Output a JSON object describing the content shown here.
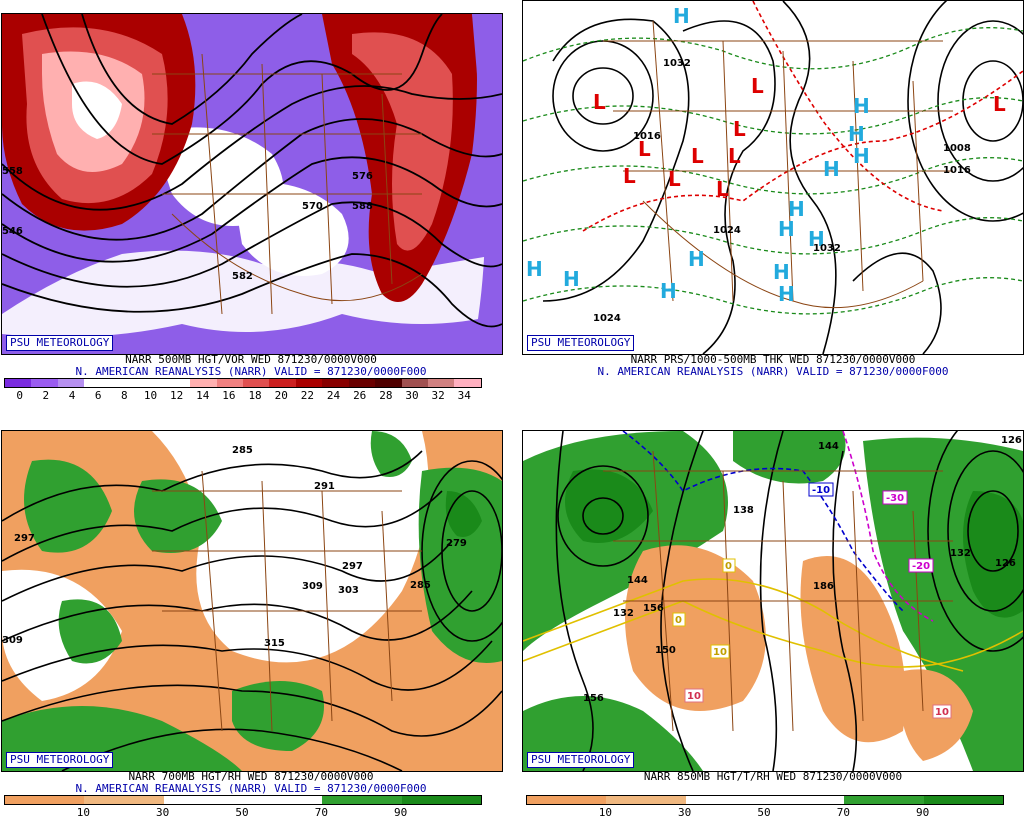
{
  "badge_text": "PSU METEOROLOGY",
  "panels": [
    {
      "caption": "NARR 500MB HGT/VOR WED 871230/0000V000",
      "subcaption": "N. AMERICAN REANALYSIS (NARR) VALID = 871230/0000F000",
      "scale_labels": [
        "0",
        "2",
        "4",
        "6",
        "8",
        "10",
        "12",
        "14",
        "16",
        "18",
        "20",
        "22",
        "24",
        "26",
        "28",
        "30",
        "32",
        "34"
      ],
      "scale_colors": [
        "#7a2be0",
        "#9a5cf0",
        "#b690f0",
        "#ffffff",
        "#ffffff",
        "#ffffff",
        "#ffffff",
        "#ffb0b0",
        "#f08080",
        "#e05050",
        "#cc2020",
        "#aa0000",
        "#880000",
        "#6a0000",
        "#500000",
        "#a05050",
        "#d08080",
        "#ffb0c0"
      ],
      "contour_labels": [
        "570",
        "576",
        "582",
        "558",
        "546",
        "588"
      ]
    },
    {
      "caption": "NARR PRS/1000-500MB THK WED 871230/0000V000",
      "subcaption": "N. AMERICAN REANALYSIS (NARR) VALID = 871230/0000F000",
      "contour_labels": [
        "1032",
        "1016",
        "1024",
        "1032",
        "1024",
        "1008",
        "1016"
      ],
      "highs": [
        "H",
        "H",
        "H",
        "H",
        "H",
        "H",
        "H",
        "H",
        "H",
        "H",
        "H",
        "H",
        "H",
        "H"
      ],
      "lows": [
        "L",
        "L",
        "L",
        "L",
        "L",
        "L",
        "L",
        "L",
        "L",
        "L"
      ]
    },
    {
      "caption": "NARR 700MB HGT/RH WED 871230/0000V000",
      "subcaption": "N. AMERICAN REANALYSIS (NARR) VALID = 871230/0000F000",
      "scale_labels": [
        "10",
        "30",
        "50",
        "70",
        "90"
      ],
      "scale_colors": [
        "#f0a060",
        "#f0b880",
        "#ffffff",
        "#ffffff",
        "#30a030",
        "#1a8a1a"
      ],
      "contour_labels": [
        "285",
        "297",
        "291",
        "309",
        "303",
        "297",
        "315",
        "279",
        "285",
        "309"
      ]
    },
    {
      "caption": "NARR 850MB HGT/T/RH WED 871230/0000V000",
      "subcaption": "",
      "scale_labels": [
        "10",
        "30",
        "50",
        "70",
        "90"
      ],
      "scale_colors": [
        "#f0a060",
        "#f0b880",
        "#ffffff",
        "#ffffff",
        "#30a030",
        "#1a8a1a"
      ],
      "contour_labels": [
        "144",
        "138",
        "132",
        "126",
        "156",
        "150",
        "144",
        "126",
        "132",
        "156",
        "186"
      ],
      "temp_labels": [
        "-10",
        "-30",
        "-20",
        "0",
        "0",
        "10",
        "10",
        "10"
      ]
    }
  ]
}
